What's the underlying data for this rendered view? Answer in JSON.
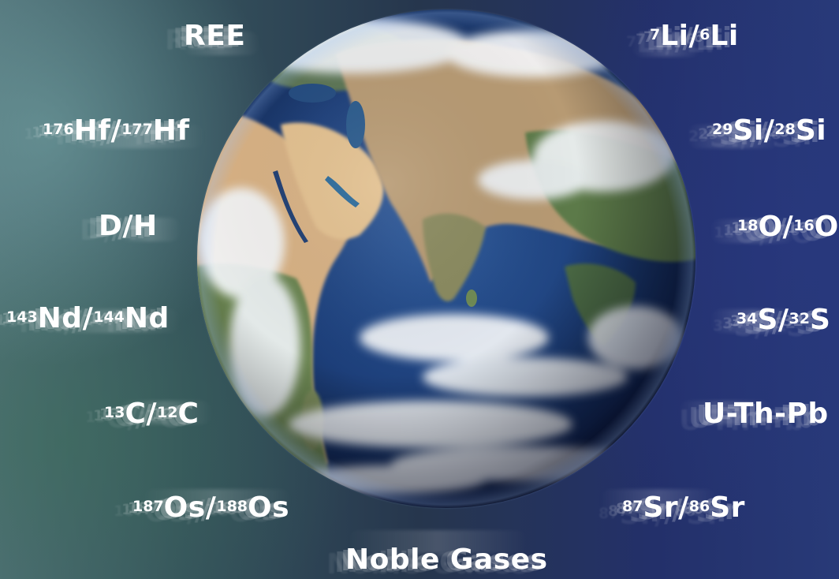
{
  "labels": {
    "ree": {
      "text": "REE"
    },
    "li": {
      "sup1": "7",
      "el1": "Li/",
      "sup2": "6",
      "el2": "Li"
    },
    "hf": {
      "sup1": "176",
      "el1": "Hf/",
      "sup2": "177",
      "el2": "Hf"
    },
    "si": {
      "sup1": "29",
      "el1": "Si/",
      "sup2": "28",
      "el2": "Si"
    },
    "dh": {
      "text": "D/H"
    },
    "o": {
      "sup1": "18",
      "el1": "O/",
      "sup2": "16",
      "el2": "O"
    },
    "nd": {
      "sup1": "143",
      "el1": "Nd/",
      "sup2": "144",
      "el2": "Nd"
    },
    "s": {
      "sup1": "34",
      "el1": "S/",
      "sup2": "32",
      "el2": "S"
    },
    "c": {
      "sup1": "13",
      "el1": "C/",
      "sup2": "12",
      "el2": "C"
    },
    "uthpb": {
      "text": "U-Th-Pb"
    },
    "os": {
      "sup1": "187",
      "el1": "Os/",
      "sup2": "188",
      "el2": "Os"
    },
    "sr": {
      "sup1": "87",
      "el1": "Sr/",
      "sup2": "86",
      "el2": "Sr"
    },
    "noble": {
      "text": "Noble Gases"
    }
  },
  "colors": {
    "ocean": "#1d3f7a",
    "land_desert": "#d9b98a",
    "land_green": "#5f7a4a",
    "cloud": "#f2f5f8",
    "text": "#ffffff"
  }
}
